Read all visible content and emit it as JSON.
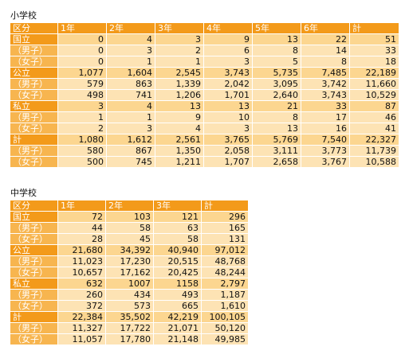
{
  "elementary": {
    "title": "小学校",
    "headers": [
      "区分",
      "1年",
      "2年",
      "3年",
      "4年",
      "5年",
      "6年",
      "計"
    ],
    "rows": [
      {
        "label": "国立",
        "kind": "group",
        "values": [
          "0",
          "4",
          "3",
          "9",
          "13",
          "22",
          "51"
        ]
      },
      {
        "label": "（男子）",
        "kind": "sub",
        "values": [
          "0",
          "3",
          "2",
          "6",
          "8",
          "14",
          "33"
        ]
      },
      {
        "label": "（女子）",
        "kind": "sub",
        "values": [
          "0",
          "1",
          "1",
          "3",
          "5",
          "8",
          "18"
        ]
      },
      {
        "label": "公立",
        "kind": "group",
        "values": [
          "1,077",
          "1,604",
          "2,545",
          "3,743",
          "5,735",
          "7,485",
          "22,189"
        ]
      },
      {
        "label": "（男子）",
        "kind": "sub",
        "values": [
          "579",
          "863",
          "1,339",
          "2,042",
          "3,095",
          "3,742",
          "11,660"
        ]
      },
      {
        "label": "（女子）",
        "kind": "sub",
        "values": [
          "498",
          "741",
          "1,206",
          "1,701",
          "2,640",
          "3,743",
          "10,529"
        ]
      },
      {
        "label": "私立",
        "kind": "group",
        "values": [
          "3",
          "4",
          "13",
          "13",
          "21",
          "33",
          "87"
        ]
      },
      {
        "label": "（男子）",
        "kind": "sub",
        "values": [
          "1",
          "1",
          "9",
          "10",
          "8",
          "17",
          "46"
        ]
      },
      {
        "label": "（女子）",
        "kind": "sub",
        "values": [
          "2",
          "3",
          "4",
          "3",
          "13",
          "16",
          "41"
        ]
      },
      {
        "label": "計",
        "kind": "group",
        "values": [
          "1,080",
          "1,612",
          "2,561",
          "3,765",
          "5,769",
          "7,540",
          "22,327"
        ]
      },
      {
        "label": "（男子）",
        "kind": "sub",
        "values": [
          "580",
          "867",
          "1,350",
          "2,058",
          "3,111",
          "3,773",
          "11,739"
        ]
      },
      {
        "label": "（女子）",
        "kind": "sub",
        "values": [
          "500",
          "745",
          "1,211",
          "1,707",
          "2,658",
          "3,767",
          "10,588"
        ]
      }
    ]
  },
  "junior_high": {
    "title": "中学校",
    "headers": [
      "区分",
      "1年",
      "2年",
      "3年",
      "計"
    ],
    "rows": [
      {
        "label": "国立",
        "kind": "group",
        "values": [
          "72",
          "103",
          "121",
          "296"
        ]
      },
      {
        "label": "（男子）",
        "kind": "sub",
        "values": [
          "44",
          "58",
          "63",
          "165"
        ]
      },
      {
        "label": "（女子）",
        "kind": "sub",
        "values": [
          "28",
          "45",
          "58",
          "131"
        ]
      },
      {
        "label": "公立",
        "kind": "group",
        "values": [
          "21,680",
          "34,392",
          "40,940",
          "97,012"
        ]
      },
      {
        "label": "（男子）",
        "kind": "sub",
        "values": [
          "11,023",
          "17,230",
          "20,515",
          "48,768"
        ]
      },
      {
        "label": "（女子）",
        "kind": "sub",
        "values": [
          "10,657",
          "17,162",
          "20,425",
          "48,244"
        ]
      },
      {
        "label": "私立",
        "kind": "group",
        "values": [
          "632",
          "1007",
          "1158",
          "2,797"
        ]
      },
      {
        "label": "（男子）",
        "kind": "sub",
        "values": [
          "260",
          "434",
          "493",
          "1,187"
        ]
      },
      {
        "label": "（女子）",
        "kind": "sub",
        "values": [
          "372",
          "573",
          "665",
          "1,610"
        ]
      },
      {
        "label": "計",
        "kind": "group",
        "values": [
          "22,384",
          "35,502",
          "42,219",
          "100,105"
        ]
      },
      {
        "label": "（男子）",
        "kind": "sub",
        "values": [
          "11,327",
          "17,722",
          "21,071",
          "50,120"
        ]
      },
      {
        "label": "（女子）",
        "kind": "sub",
        "values": [
          "11,057",
          "17,780",
          "21,148",
          "49,985"
        ]
      }
    ]
  },
  "colors": {
    "header_orange": "#f39a1a",
    "sub_label_orange": "#f7b54f",
    "cell_light": "#fde3b4",
    "cell_group": "#fcd690"
  }
}
